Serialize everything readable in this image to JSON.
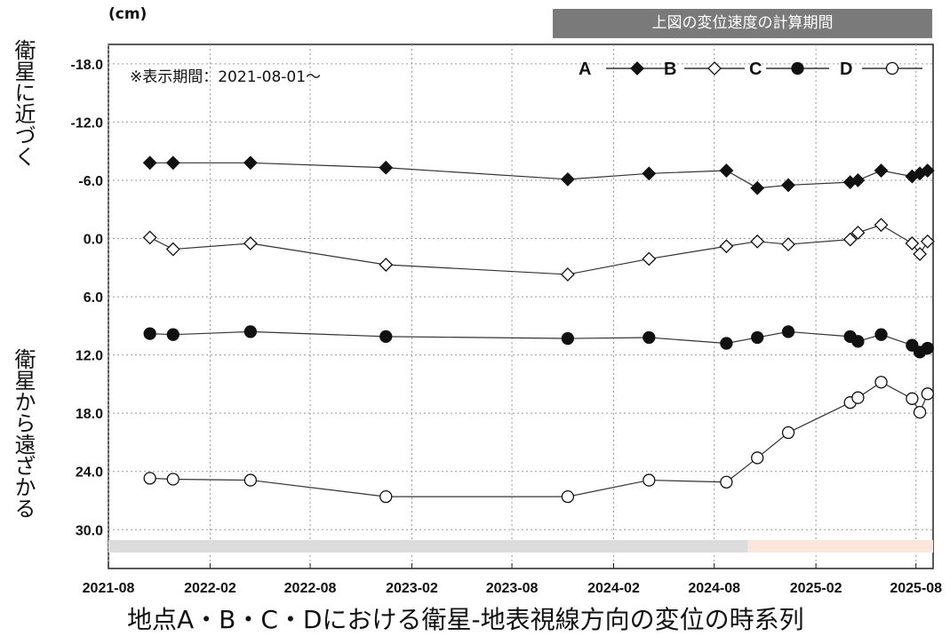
{
  "chart_data": {
    "type": "line",
    "unit": "(cm)",
    "ylabel_top": "衛星に近づく",
    "ylabel_bottom": "衛星から遠ざかる",
    "xlabel": "地点A・B・C・Dにおける衛星-地表視線方向の変位の時系列",
    "annotation": "※表示期間：2021-08-01～",
    "period_label": "上図の変位速度の計算期間",
    "xlim": [
      "2021-08-01",
      "2025-09-01"
    ],
    "ylim": [
      -20,
      34
    ],
    "y_inverted": true,
    "grid": true,
    "legend_position": "top-right",
    "x_ticks": [
      "2021-08",
      "2022-02",
      "2022-08",
      "2023-02",
      "2023-08",
      "2024-02",
      "2024-08",
      "2025-02",
      "2025-08"
    ],
    "y_ticks": [
      "-18.0",
      "-12.0",
      "-6.0",
      "0.0",
      "6.0",
      "12.0",
      "18.0",
      "24.0",
      "30.0"
    ],
    "y_tick_values": [
      -18,
      -12,
      -6,
      0,
      6,
      12,
      18,
      24,
      30
    ],
    "legend_order": [
      "A",
      "B",
      "C",
      "D"
    ],
    "series": [
      {
        "name": "A",
        "marker": "diamond-filled",
        "points": [
          [
            "2021-10-15",
            -7.8
          ],
          [
            "2021-11-26",
            -7.8
          ],
          [
            "2022-04-15",
            -7.8
          ],
          [
            "2022-12-16",
            -7.3
          ],
          [
            "2023-11-10",
            -6.1
          ],
          [
            "2024-04-05",
            -6.7
          ],
          [
            "2024-08-23",
            -7.0
          ],
          [
            "2024-10-18",
            -5.2
          ],
          [
            "2024-12-13",
            -5.5
          ],
          [
            "2025-04-04",
            -5.8
          ],
          [
            "2025-04-18",
            -6.0
          ],
          [
            "2025-05-30",
            -7.0
          ],
          [
            "2025-07-25",
            -6.4
          ],
          [
            "2025-08-08",
            -6.7
          ],
          [
            "2025-08-22",
            -7.0
          ]
        ]
      },
      {
        "name": "B",
        "marker": "diamond-open",
        "points": [
          [
            "2021-10-15",
            -0.1
          ],
          [
            "2021-11-26",
            1.1
          ],
          [
            "2022-04-15",
            0.5
          ],
          [
            "2022-12-16",
            2.7
          ],
          [
            "2023-11-10",
            3.7
          ],
          [
            "2024-04-05",
            2.1
          ],
          [
            "2024-08-23",
            0.8
          ],
          [
            "2024-10-18",
            0.3
          ],
          [
            "2024-12-13",
            0.6
          ],
          [
            "2025-04-04",
            0.1
          ],
          [
            "2025-04-18",
            -0.6
          ],
          [
            "2025-05-30",
            -1.4
          ],
          [
            "2025-07-25",
            0.5
          ],
          [
            "2025-08-08",
            1.6
          ],
          [
            "2025-08-22",
            0.3
          ]
        ]
      },
      {
        "name": "C",
        "marker": "circle-filled",
        "points": [
          [
            "2021-10-15",
            9.8
          ],
          [
            "2021-11-26",
            9.9
          ],
          [
            "2022-04-15",
            9.6
          ],
          [
            "2022-12-16",
            10.1
          ],
          [
            "2023-11-10",
            10.3
          ],
          [
            "2024-04-05",
            10.2
          ],
          [
            "2024-08-23",
            10.8
          ],
          [
            "2024-10-18",
            10.2
          ],
          [
            "2024-12-13",
            9.6
          ],
          [
            "2025-04-04",
            10.1
          ],
          [
            "2025-04-18",
            10.6
          ],
          [
            "2025-05-30",
            9.9
          ],
          [
            "2025-07-25",
            11.0
          ],
          [
            "2025-08-08",
            11.7
          ],
          [
            "2025-08-22",
            11.3
          ]
        ]
      },
      {
        "name": "D",
        "marker": "circle-open",
        "points": [
          [
            "2021-10-15",
            24.7
          ],
          [
            "2021-11-26",
            24.8
          ],
          [
            "2022-04-15",
            24.9
          ],
          [
            "2022-12-16",
            26.6
          ],
          [
            "2023-11-10",
            26.6
          ],
          [
            "2024-04-05",
            24.9
          ],
          [
            "2024-08-23",
            25.1
          ],
          [
            "2024-10-18",
            22.6
          ],
          [
            "2024-12-13",
            20.0
          ],
          [
            "2025-04-04",
            16.9
          ],
          [
            "2025-04-18",
            16.4
          ],
          [
            "2025-05-30",
            14.8
          ],
          [
            "2025-07-25",
            16.5
          ],
          [
            "2025-08-08",
            17.9
          ],
          [
            "2025-08-22",
            16.0
          ]
        ]
      }
    ],
    "period_bars": [
      {
        "start": "2021-08-01",
        "end": "2024-10-01",
        "color": "#dcdcdc"
      },
      {
        "start": "2024-10-01",
        "end": "2025-09-01",
        "color": "#fbe6dc"
      }
    ]
  }
}
